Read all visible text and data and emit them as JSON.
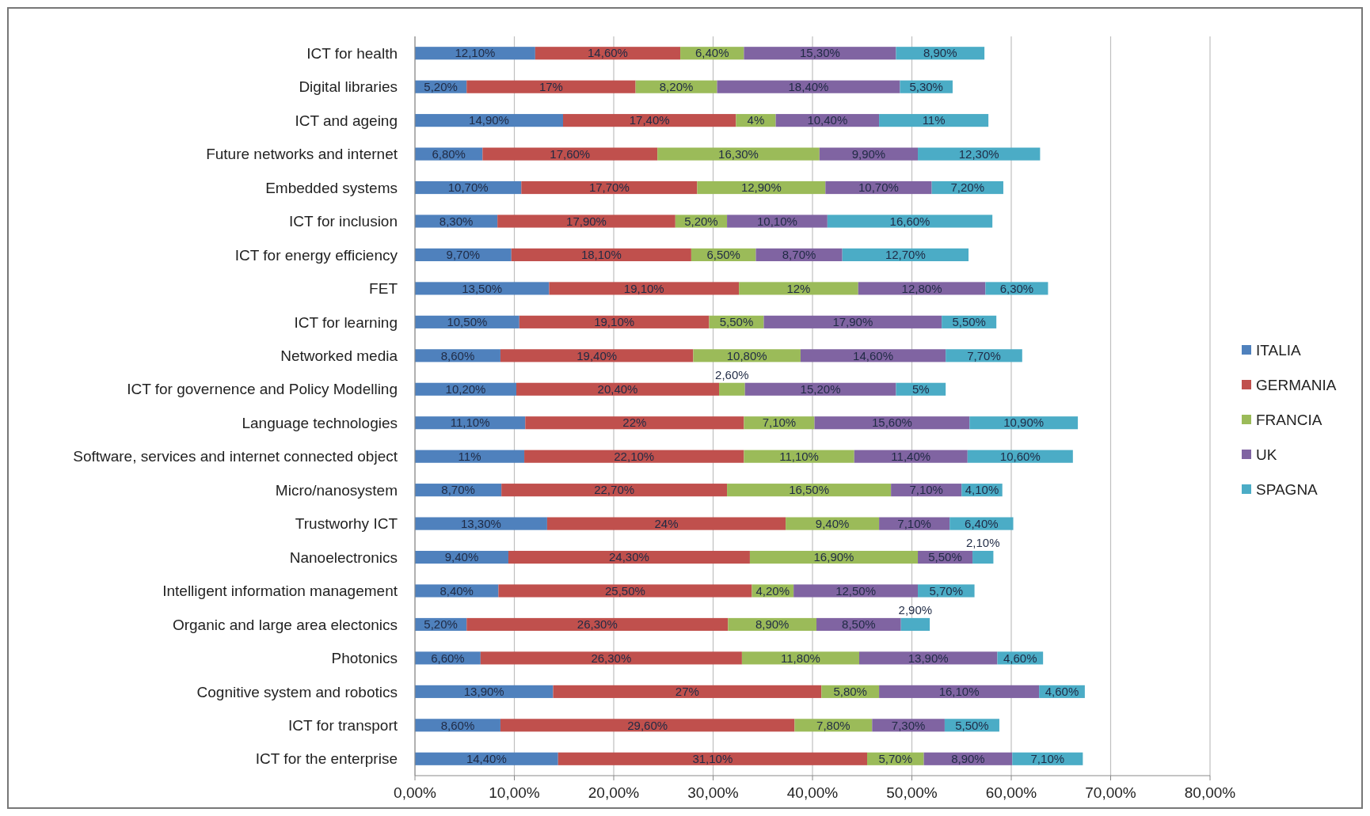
{
  "chart_data": {
    "type": "bar",
    "orientation": "horizontal",
    "stacked": true,
    "categories": [
      "ICT for health",
      "Digital libraries",
      "ICT and ageing",
      "Future networks and internet",
      "Embedded systems",
      "ICT for inclusion",
      "ICT for energy efficiency",
      "FET",
      "ICT for learning",
      "Networked media",
      "ICT for governence and Policy Modelling",
      "Language technologies",
      "Software, services and internet connected object",
      "Micro/nanosystem",
      "Trustworhy ICT",
      "Nanoelectronics",
      "Intelligent information management",
      "Organic and large area electonics",
      "Photonics",
      "Cognitive system and robotics",
      "ICT for transport",
      "ICT for the enterprise"
    ],
    "series": [
      {
        "name": "ITALIA",
        "color": "#4f81bd",
        "values": [
          12.1,
          5.2,
          14.9,
          6.8,
          10.7,
          8.3,
          9.7,
          13.5,
          10.5,
          8.6,
          10.2,
          11.1,
          11,
          8.7,
          13.3,
          9.4,
          8.4,
          5.2,
          6.6,
          13.9,
          8.6,
          14.4
        ],
        "value_labels": [
          "12,10%",
          "5,20%",
          "14,90%",
          "6,80%",
          "10,70%",
          "8,30%",
          "9,70%",
          "13,50%",
          "10,50%",
          "8,60%",
          "10,20%",
          "11,10%",
          "11%",
          "8,70%",
          "13,30%",
          "9,40%",
          "8,40%",
          "5,20%",
          "6,60%",
          "13,90%",
          "8,60%",
          "14,40%"
        ]
      },
      {
        "name": "GERMANIA",
        "color": "#c0504d",
        "values": [
          14.6,
          17,
          17.4,
          17.6,
          17.7,
          17.9,
          18.1,
          19.1,
          19.1,
          19.4,
          20.4,
          22,
          22.1,
          22.7,
          24,
          24.3,
          25.5,
          26.3,
          26.3,
          27,
          29.6,
          31.1
        ],
        "value_labels": [
          "14,60%",
          "17%",
          "17,40%",
          "17,60%",
          "17,70%",
          "17,90%",
          "18,10%",
          "19,10%",
          "19,10%",
          "19,40%",
          "20,40%",
          "22%",
          "22,10%",
          "22,70%",
          "24%",
          "24,30%",
          "25,50%",
          "26,30%",
          "26,30%",
          "27%",
          "29,60%",
          "31,10%"
        ]
      },
      {
        "name": "FRANCIA",
        "color": "#9bbb59",
        "values": [
          6.4,
          8.2,
          4,
          16.3,
          12.9,
          5.2,
          6.5,
          12,
          5.5,
          10.8,
          2.6,
          7.1,
          11.1,
          16.5,
          9.4,
          16.9,
          4.2,
          8.9,
          11.8,
          5.8,
          7.8,
          5.7
        ],
        "value_labels": [
          "6,40%",
          "8,20%",
          "4%",
          "16,30%",
          "12,90%",
          "5,20%",
          "6,50%",
          "12%",
          "5,50%",
          "10,80%",
          "2,60%",
          "7,10%",
          "11,10%",
          "16,50%",
          "9,40%",
          "16,90%",
          "4,20%",
          "8,90%",
          "11,80%",
          "5,80%",
          "7,80%",
          "5,70%"
        ]
      },
      {
        "name": "UK",
        "color": "#8064a2",
        "values": [
          15.3,
          18.4,
          10.4,
          9.9,
          10.7,
          10.1,
          8.7,
          12.8,
          17.9,
          14.6,
          15.2,
          15.6,
          11.4,
          7.1,
          7.1,
          5.5,
          12.5,
          8.5,
          13.9,
          16.1,
          7.3,
          8.9
        ],
        "value_labels": [
          "15,30%",
          "18,40%",
          "10,40%",
          "9,90%",
          "10,70%",
          "10,10%",
          "8,70%",
          "12,80%",
          "17,90%",
          "14,60%",
          "15,20%",
          "15,60%",
          "11,40%",
          "7,10%",
          "7,10%",
          "5,50%",
          "12,50%",
          "8,50%",
          "13,90%",
          "16,10%",
          "7,30%",
          "8,90%"
        ]
      },
      {
        "name": "SPAGNA",
        "color": "#4bacc6",
        "values": [
          8.9,
          5.3,
          11,
          12.3,
          7.2,
          16.6,
          12.7,
          6.3,
          5.5,
          7.7,
          5,
          10.9,
          10.6,
          4.1,
          6.4,
          2.1,
          5.7,
          2.9,
          4.6,
          4.6,
          5.5,
          7.1
        ],
        "value_labels": [
          "8,90%",
          "5,30%",
          "11%",
          "12,30%",
          "7,20%",
          "16,60%",
          "12,70%",
          "6,30%",
          "5,50%",
          "7,70%",
          "5%",
          "10,90%",
          "10,60%",
          "4,10%",
          "6,40%",
          "2,10%",
          "5,70%",
          "2,90%",
          "4,60%",
          "4,60%",
          "5,50%",
          "7,10%"
        ]
      }
    ],
    "xlim": [
      0,
      80
    ],
    "xticks": [
      {
        "value": 0,
        "label": "0,00%"
      },
      {
        "value": 10,
        "label": "10,00%"
      },
      {
        "value": 20,
        "label": "20,00%"
      },
      {
        "value": 30,
        "label": "30,00%"
      },
      {
        "value": 40,
        "label": "40,00%"
      },
      {
        "value": 50,
        "label": "50,00%"
      },
      {
        "value": 60,
        "label": "60,00%"
      },
      {
        "value": 70,
        "label": "70,00%"
      },
      {
        "value": 80,
        "label": "80,00%"
      }
    ],
    "grid": "x",
    "legend": "right"
  }
}
